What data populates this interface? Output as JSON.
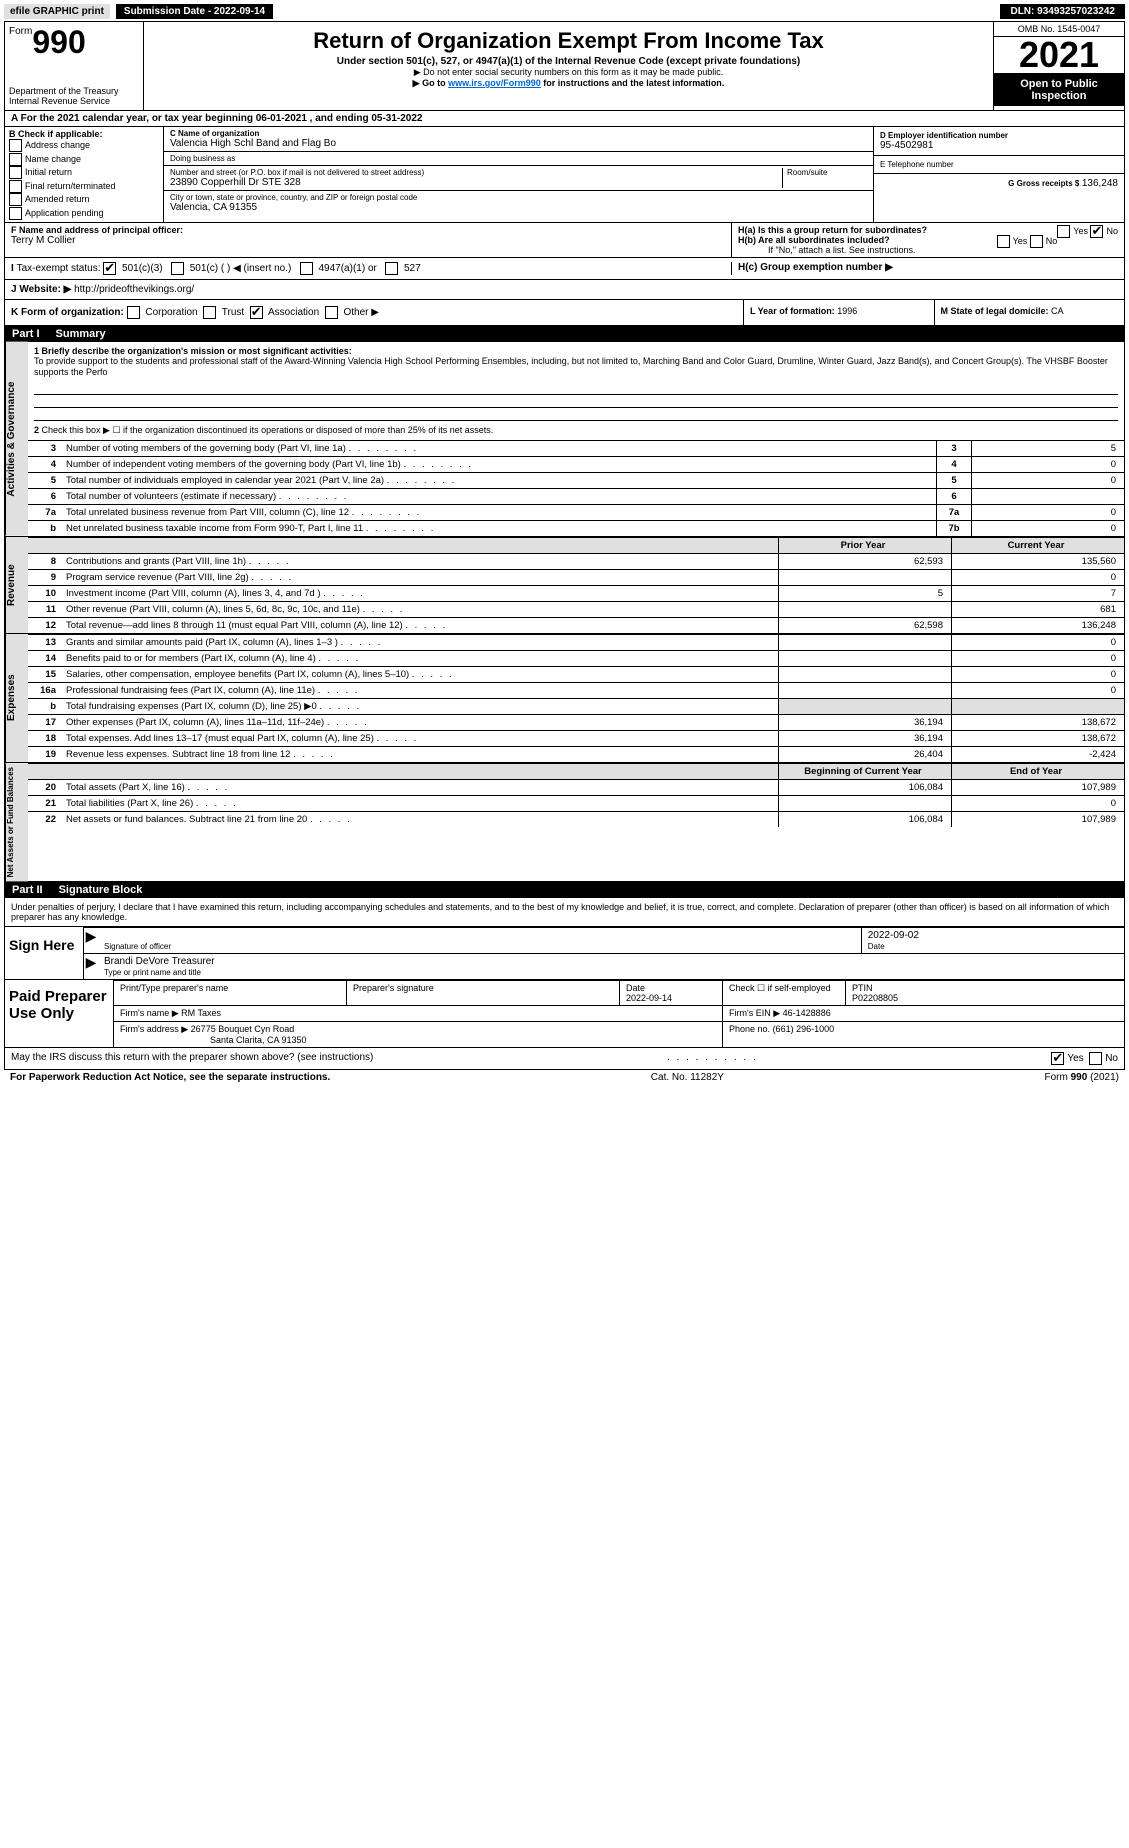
{
  "topbar": {
    "efile": "efile GRAPHIC print",
    "submit_btn": "Submission Date - 2022-09-14",
    "dln": "DLN: 93493257023242"
  },
  "header": {
    "form_word": "Form",
    "form_no": "990",
    "dept": "Department of the Treasury",
    "irs": "Internal Revenue Service",
    "title": "Return of Organization Exempt From Income Tax",
    "sub": "Under section 501(c), 527, or 4947(a)(1) of the Internal Revenue Code (except private foundations)",
    "note1": "▶ Do not enter social security numbers on this form as it may be made public.",
    "note2_pre": "▶ Go to ",
    "note2_link": "www.irs.gov/Form990",
    "note2_post": " for instructions and the latest information.",
    "omb": "OMB No. 1545-0047",
    "year": "2021",
    "open": "Open to Public Inspection"
  },
  "A": {
    "text": "For the 2021 calendar year, or tax year beginning 06-01-2021   , and ending 05-31-2022"
  },
  "B": {
    "label": "B Check if applicable:",
    "items": [
      "Address change",
      "Name change",
      "Initial return",
      "Final return/terminated",
      "Amended return",
      "Application pending"
    ]
  },
  "C": {
    "name_label": "C Name of organization",
    "name": "Valencia High Schl Band and Flag Bo",
    "dba_label": "Doing business as",
    "dba": "",
    "street_label": "Number and street (or P.O. box if mail is not delivered to street address)",
    "street": "23890 Copperhill Dr STE 328",
    "room_label": "Room/suite",
    "city_label": "City or town, state or province, country, and ZIP or foreign postal code",
    "city": "Valencia, CA  91355"
  },
  "D": {
    "label": "D Employer identification number",
    "val": "95-4502981"
  },
  "E": {
    "label": "E Telephone number",
    "val": ""
  },
  "G": {
    "label": "G Gross receipts $",
    "val": "136,248"
  },
  "F": {
    "label": "F  Name and address of principal officer:",
    "val": "Terry M Collier"
  },
  "H": {
    "a": "H(a)  Is this a group return for subordinates?",
    "b": "H(b)  Are all subordinates included?",
    "b_note": "If \"No,\" attach a list. See instructions.",
    "c": "H(c)  Group exemption number ▶",
    "yes": "Yes",
    "no": "No"
  },
  "I": {
    "label": "Tax-exempt status:",
    "opts": [
      "501(c)(3)",
      "501(c) (  ) ◀ (insert no.)",
      "4947(a)(1) or",
      "527"
    ]
  },
  "J": {
    "label": "Website: ▶",
    "val": "http://prideofthevikings.org/"
  },
  "K": {
    "label": "K Form of organization:",
    "opts": [
      "Corporation",
      "Trust",
      "Association",
      "Other ▶"
    ]
  },
  "L": {
    "label": "L Year of formation:",
    "val": "1996"
  },
  "M": {
    "label": "M State of legal domicile:",
    "val": "CA"
  },
  "part1": {
    "label": "Part I",
    "title": "Summary",
    "side_act": "Activities & Governance",
    "side_rev": "Revenue",
    "side_exp": "Expenses",
    "side_net": "Net Assets or Fund Balances",
    "q1_label": "1  Briefly describe the organization's mission or most significant activities:",
    "q1_text": "To provide support to the students and professional staff of the Award-Winning Valencia High School Performing Ensembles, including, but not limited to, Marching Band and Color Guard, Drumline, Winter Guard, Jazz Band(s), and Concert Group(s). The VHSBF Booster supports the Perfo",
    "q2": "Check this box ▶ ☐  if the organization discontinued its operations or disposed of more than 25% of its net assets.",
    "lines_gov": [
      {
        "n": "3",
        "t": "Number of voting members of the governing body (Part VI, line 1a)",
        "box": "3",
        "v": "5"
      },
      {
        "n": "4",
        "t": "Number of independent voting members of the governing body (Part VI, line 1b)",
        "box": "4",
        "v": "0"
      },
      {
        "n": "5",
        "t": "Total number of individuals employed in calendar year 2021 (Part V, line 2a)",
        "box": "5",
        "v": "0"
      },
      {
        "n": "6",
        "t": "Total number of volunteers (estimate if necessary)",
        "box": "6",
        "v": ""
      },
      {
        "n": "7a",
        "t": "Total unrelated business revenue from Part VIII, column (C), line 12",
        "box": "7a",
        "v": "0"
      },
      {
        "n": "b",
        "t": "Net unrelated business taxable income from Form 990-T, Part I, line 11",
        "box": "7b",
        "v": "0"
      }
    ],
    "hdr_prior": "Prior Year",
    "hdr_curr": "Current Year",
    "lines_rev": [
      {
        "n": "8",
        "t": "Contributions and grants (Part VIII, line 1h)",
        "p": "62,593",
        "c": "135,560"
      },
      {
        "n": "9",
        "t": "Program service revenue (Part VIII, line 2g)",
        "p": "",
        "c": "0"
      },
      {
        "n": "10",
        "t": "Investment income (Part VIII, column (A), lines 3, 4, and 7d )",
        "p": "5",
        "c": "7"
      },
      {
        "n": "11",
        "t": "Other revenue (Part VIII, column (A), lines 5, 6d, 8c, 9c, 10c, and 11e)",
        "p": "",
        "c": "681"
      },
      {
        "n": "12",
        "t": "Total revenue—add lines 8 through 11 (must equal Part VIII, column (A), line 12)",
        "p": "62,598",
        "c": "136,248"
      }
    ],
    "lines_exp": [
      {
        "n": "13",
        "t": "Grants and similar amounts paid (Part IX, column (A), lines 1–3 )",
        "p": "",
        "c": "0"
      },
      {
        "n": "14",
        "t": "Benefits paid to or for members (Part IX, column (A), line 4)",
        "p": "",
        "c": "0"
      },
      {
        "n": "15",
        "t": "Salaries, other compensation, employee benefits (Part IX, column (A), lines 5–10)",
        "p": "",
        "c": "0"
      },
      {
        "n": "16a",
        "t": "Professional fundraising fees (Part IX, column (A), line 11e)",
        "p": "",
        "c": "0"
      },
      {
        "n": "b",
        "t": "Total fundraising expenses (Part IX, column (D), line 25) ▶0",
        "p": "grey",
        "c": "grey"
      },
      {
        "n": "17",
        "t": "Other expenses (Part IX, column (A), lines 11a–11d, 11f–24e)",
        "p": "36,194",
        "c": "138,672"
      },
      {
        "n": "18",
        "t": "Total expenses. Add lines 13–17 (must equal Part IX, column (A), line 25)",
        "p": "36,194",
        "c": "138,672"
      },
      {
        "n": "19",
        "t": "Revenue less expenses. Subtract line 18 from line 12",
        "p": "26,404",
        "c": "-2,424"
      }
    ],
    "hdr_beg": "Beginning of Current Year",
    "hdr_end": "End of Year",
    "lines_net": [
      {
        "n": "20",
        "t": "Total assets (Part X, line 16)",
        "p": "106,084",
        "c": "107,989"
      },
      {
        "n": "21",
        "t": "Total liabilities (Part X, line 26)",
        "p": "",
        "c": "0"
      },
      {
        "n": "22",
        "t": "Net assets or fund balances. Subtract line 21 from line 20",
        "p": "106,084",
        "c": "107,989"
      }
    ]
  },
  "part2": {
    "label": "Part II",
    "title": "Signature Block",
    "decl": "Under penalties of perjury, I declare that I have examined this return, including accompanying schedules and statements, and to the best of my knowledge and belief, it is true, correct, and complete. Declaration of preparer (other than officer) is based on all information of which preparer has any knowledge.",
    "sign_here": "Sign Here",
    "sig_officer": "Signature of officer",
    "sig_date": "2022-09-02",
    "date_label": "Date",
    "typed_name": "Brandi DeVore  Treasurer",
    "typed_label": "Type or print name and title",
    "paid_label": "Paid Preparer Use Only",
    "col_prep_name": "Print/Type preparer's name",
    "col_prep_sig": "Preparer's signature",
    "col_date": "Date",
    "col_date_val": "2022-09-14",
    "col_check": "Check ☐ if self-employed",
    "col_ptin": "PTIN",
    "ptin_val": "P02208805",
    "firm_name_label": "Firm's name    ▶",
    "firm_name": "RM Taxes",
    "firm_ein_label": "Firm's EIN ▶",
    "firm_ein": "46-1428886",
    "firm_addr_label": "Firm's address ▶",
    "firm_addr1": "26775 Bouquet Cyn Road",
    "firm_addr2": "Santa Clarita, CA  91350",
    "phone_label": "Phone no.",
    "phone": "(661) 296-1000",
    "may_irs": "May the IRS discuss this return with the preparer shown above? (see instructions)",
    "yes": "Yes",
    "no": "No"
  },
  "footer": {
    "left": "For Paperwork Reduction Act Notice, see the separate instructions.",
    "center": "Cat. No. 11282Y",
    "right": "Form 990 (2021)"
  }
}
